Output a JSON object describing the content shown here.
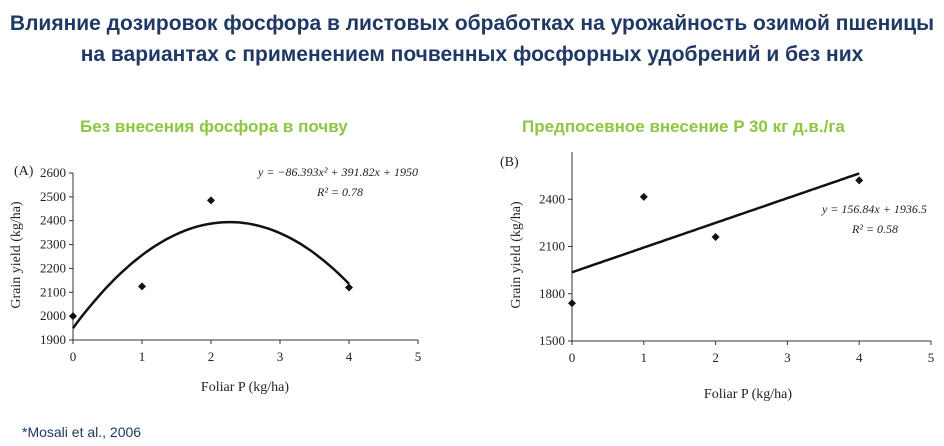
{
  "title": "Влияние дозировок фосфора в листовых обработках на урожайность озимой пшеницы на вариантах с применением почвенных фосфорных удобрений и без них",
  "citation": "*Mosali et al., 2006",
  "chart_data": [
    {
      "type": "scatter",
      "panel_label": "(A)",
      "title": "Без внесения фосфора в почву",
      "xlabel": "Foliar P (kg/ha)",
      "ylabel": "Grain yield (kg/ha)",
      "xlim": [
        0,
        5
      ],
      "ylim": [
        1900,
        2600
      ],
      "xticks": [
        0,
        1,
        2,
        3,
        4,
        5
      ],
      "yticks": [
        1900,
        2000,
        2100,
        2200,
        2300,
        2400,
        2500,
        2600
      ],
      "points": [
        {
          "x": 0,
          "y": 2000
        },
        {
          "x": 1,
          "y": 2125
        },
        {
          "x": 2,
          "y": 2485
        },
        {
          "x": 4,
          "y": 2120
        }
      ],
      "fit": {
        "kind": "quadratic",
        "a": -86.393,
        "b": 391.82,
        "c": 1950,
        "x_range": [
          0,
          4
        ]
      },
      "equation_text": "y = −86.393x² + 391.82x + 1950",
      "r2_text": "R² = 0.78"
    },
    {
      "type": "scatter",
      "panel_label": "(B)",
      "title": "Предпосевное внесение P 30 кг д.в./га",
      "xlabel": "Foliar P (kg/ha)",
      "ylabel": "Grain yield (kg/ha)",
      "xlim": [
        0,
        5
      ],
      "ylim": [
        1500,
        2700
      ],
      "xticks": [
        0,
        1,
        2,
        3,
        4,
        5
      ],
      "yticks": [
        1500,
        1800,
        2100,
        2400
      ],
      "points": [
        {
          "x": 0,
          "y": 1740
        },
        {
          "x": 1,
          "y": 2415
        },
        {
          "x": 2,
          "y": 2160
        },
        {
          "x": 4,
          "y": 2520
        }
      ],
      "fit": {
        "kind": "linear",
        "a": 156.84,
        "b": 1936.5,
        "x_range": [
          0,
          4
        ]
      },
      "equation_text": "y = 156.84x + 1936.5",
      "r2_text": "R² = 0.58"
    }
  ]
}
